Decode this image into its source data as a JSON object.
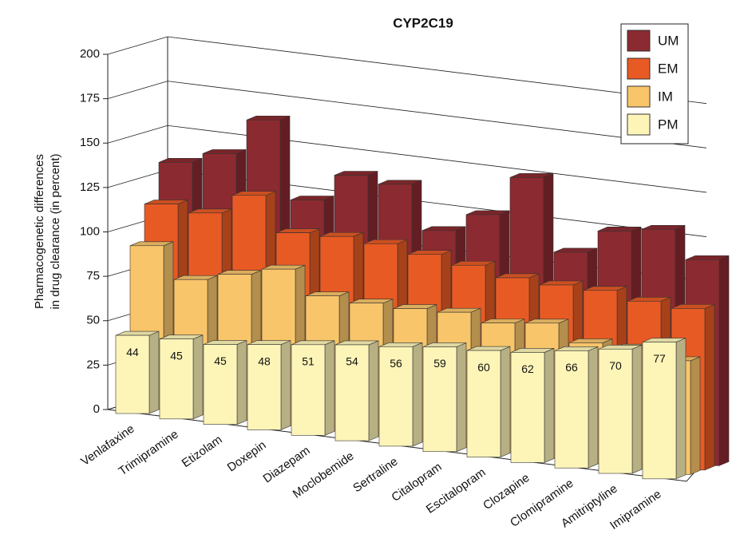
{
  "chart_data": {
    "type": "bar3d",
    "title": "CYP2C19",
    "y_label": [
      "Pharmacogenetic differences",
      "in drug clearance (in percent)"
    ],
    "categories": [
      "Venlafaxine",
      "Trimipramine",
      "Etizolam",
      "Doxepin",
      "Diazepam",
      "Moclobemide",
      "Sertraline",
      "Citalopram",
      "Escitalopram",
      "Clozapine",
      "Clomipramine",
      "Amitriptyline",
      "Imipramine"
    ],
    "series": [
      {
        "name": "UM",
        "color": "#8b2a30",
        "values": [
          134,
          142,
          164,
          122,
          139,
          137,
          114,
          126,
          150,
          111,
          126,
          130,
          116
        ]
      },
      {
        "name": "EM",
        "color": "#e85a24",
        "values": [
          113,
          111,
          124,
          106,
          107,
          106,
          103,
          100,
          96,
          95,
          95,
          92,
          91
        ]
      },
      {
        "name": "IM",
        "color": "#f9c56a",
        "values": [
          92,
          76,
          82,
          88,
          76,
          75,
          75,
          76,
          73,
          76,
          68,
          68,
          64
        ]
      },
      {
        "name": "PM",
        "color": "#fdf5b8",
        "values": [
          44,
          45,
          45,
          48,
          51,
          54,
          56,
          59,
          60,
          62,
          66,
          70,
          77
        ]
      }
    ],
    "value_labels_series": 3,
    "ylim": [
      0,
      200
    ],
    "yticks": [
      0,
      25,
      50,
      75,
      100,
      125,
      150,
      175,
      200
    ],
    "grid": true,
    "legend": "top-right"
  }
}
